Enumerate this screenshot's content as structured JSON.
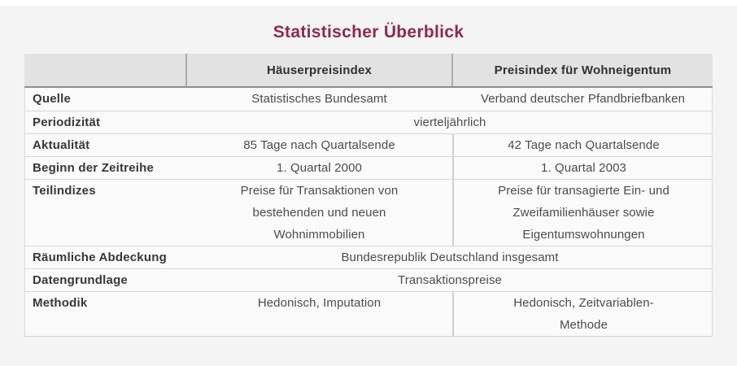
{
  "page_title": "Statistischer Überblick",
  "colors": {
    "accent_title": "#8e2a4f",
    "page_background": "#f4f4f4",
    "table_body_background": "#fafafa",
    "header_background": "#e2e2e2",
    "dark_border": "#8f8f8f",
    "light_border": "#d5d5d5"
  },
  "chart_data": {
    "type": "table",
    "title": "Statistischer Überblick",
    "columns": [
      "",
      "Häuserpreisindex",
      "Preisindex für Wohneigentum"
    ],
    "rows": [
      {
        "label": "Quelle",
        "values": [
          "Statistisches Bundesamt",
          "Verband deutscher Pfandbriefbanken"
        ],
        "span_both_columns": false
      },
      {
        "label": "Periodizität",
        "value": "vierteljährlich",
        "span_both_columns": true
      },
      {
        "label": "Aktualität",
        "values": [
          "85 Tage nach Quartalsende",
          "42 Tage nach Quartalsende"
        ],
        "span_both_columns": false
      },
      {
        "label": "Beginn der Zeitreihe",
        "values": [
          "1. Quartal 2000",
          "1. Quartal 2003"
        ],
        "span_both_columns": false
      },
      {
        "label": "Teilindizes",
        "values": [
          "Preise für Transaktionen von bestehenden und neuen Wohnimmobilien",
          "Preise für transagierte Ein- und Zweifamilienhäuser sowie Eigentumswohnungen"
        ],
        "span_both_columns": false
      },
      {
        "label": "Räumliche Abdeckung",
        "value": "Bundesrepublik Deutschland insgesamt",
        "span_both_columns": true
      },
      {
        "label": "Datengrundlage",
        "value": "Transaktionspreise",
        "span_both_columns": true
      },
      {
        "label": "Methodik",
        "values": [
          "Hedonisch, Imputation",
          "Hedonisch, Zeitvariablen-Methode"
        ],
        "span_both_columns": false
      }
    ]
  }
}
